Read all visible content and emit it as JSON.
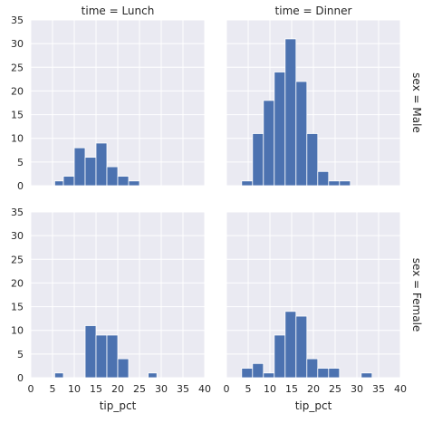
{
  "chart_data": {
    "type": "bar",
    "layout": "facet-grid",
    "col_titles": [
      "time = Lunch",
      "time = Dinner"
    ],
    "row_titles": [
      "sex = Male",
      "sex = Female"
    ],
    "xlabel": "tip_pct",
    "ylabel": "",
    "xlim": [
      0,
      40
    ],
    "ylim": [
      0,
      35
    ],
    "x_ticks": [
      0,
      5,
      10,
      15,
      20,
      25,
      30,
      35,
      40
    ],
    "y_ticks": [
      0,
      5,
      10,
      15,
      20,
      25,
      30,
      35
    ],
    "bar_color": "#4c72b0",
    "panel_background": "#eaeaf2",
    "grid": true,
    "panels": [
      {
        "row": 0,
        "col": 0,
        "bins": [
          [
            5.5,
            7.5,
            1
          ],
          [
            7.5,
            10,
            2
          ],
          [
            10,
            12.5,
            8
          ],
          [
            12.5,
            15,
            6
          ],
          [
            15,
            17.5,
            9
          ],
          [
            17.5,
            20,
            4
          ],
          [
            20,
            22.5,
            2
          ],
          [
            22.5,
            25,
            1
          ]
        ]
      },
      {
        "row": 0,
        "col": 1,
        "bins": [
          [
            3.5,
            6,
            1
          ],
          [
            6,
            8.5,
            11
          ],
          [
            8.5,
            11,
            18
          ],
          [
            11,
            13.5,
            24
          ],
          [
            13.5,
            16,
            31
          ],
          [
            16,
            18.5,
            22
          ],
          [
            18.5,
            21,
            11
          ],
          [
            21,
            23.5,
            3
          ],
          [
            23.5,
            26,
            1
          ],
          [
            26,
            28.5,
            1
          ]
        ]
      },
      {
        "row": 1,
        "col": 0,
        "bins": [
          [
            5.5,
            7.5,
            1
          ],
          [
            12.5,
            15,
            11
          ],
          [
            15,
            17.5,
            9
          ],
          [
            17.5,
            20,
            9
          ],
          [
            20,
            22.5,
            4
          ],
          [
            27,
            29,
            1
          ]
        ]
      },
      {
        "row": 1,
        "col": 1,
        "bins": [
          [
            3.5,
            6,
            2
          ],
          [
            6,
            8.5,
            3
          ],
          [
            8.5,
            11,
            1
          ],
          [
            11,
            13.5,
            9
          ],
          [
            13.5,
            16,
            14
          ],
          [
            16,
            18.5,
            13
          ],
          [
            18.5,
            21,
            4
          ],
          [
            21,
            23.5,
            2
          ],
          [
            23.5,
            26,
            2
          ],
          [
            31,
            33.5,
            1
          ]
        ]
      }
    ]
  }
}
